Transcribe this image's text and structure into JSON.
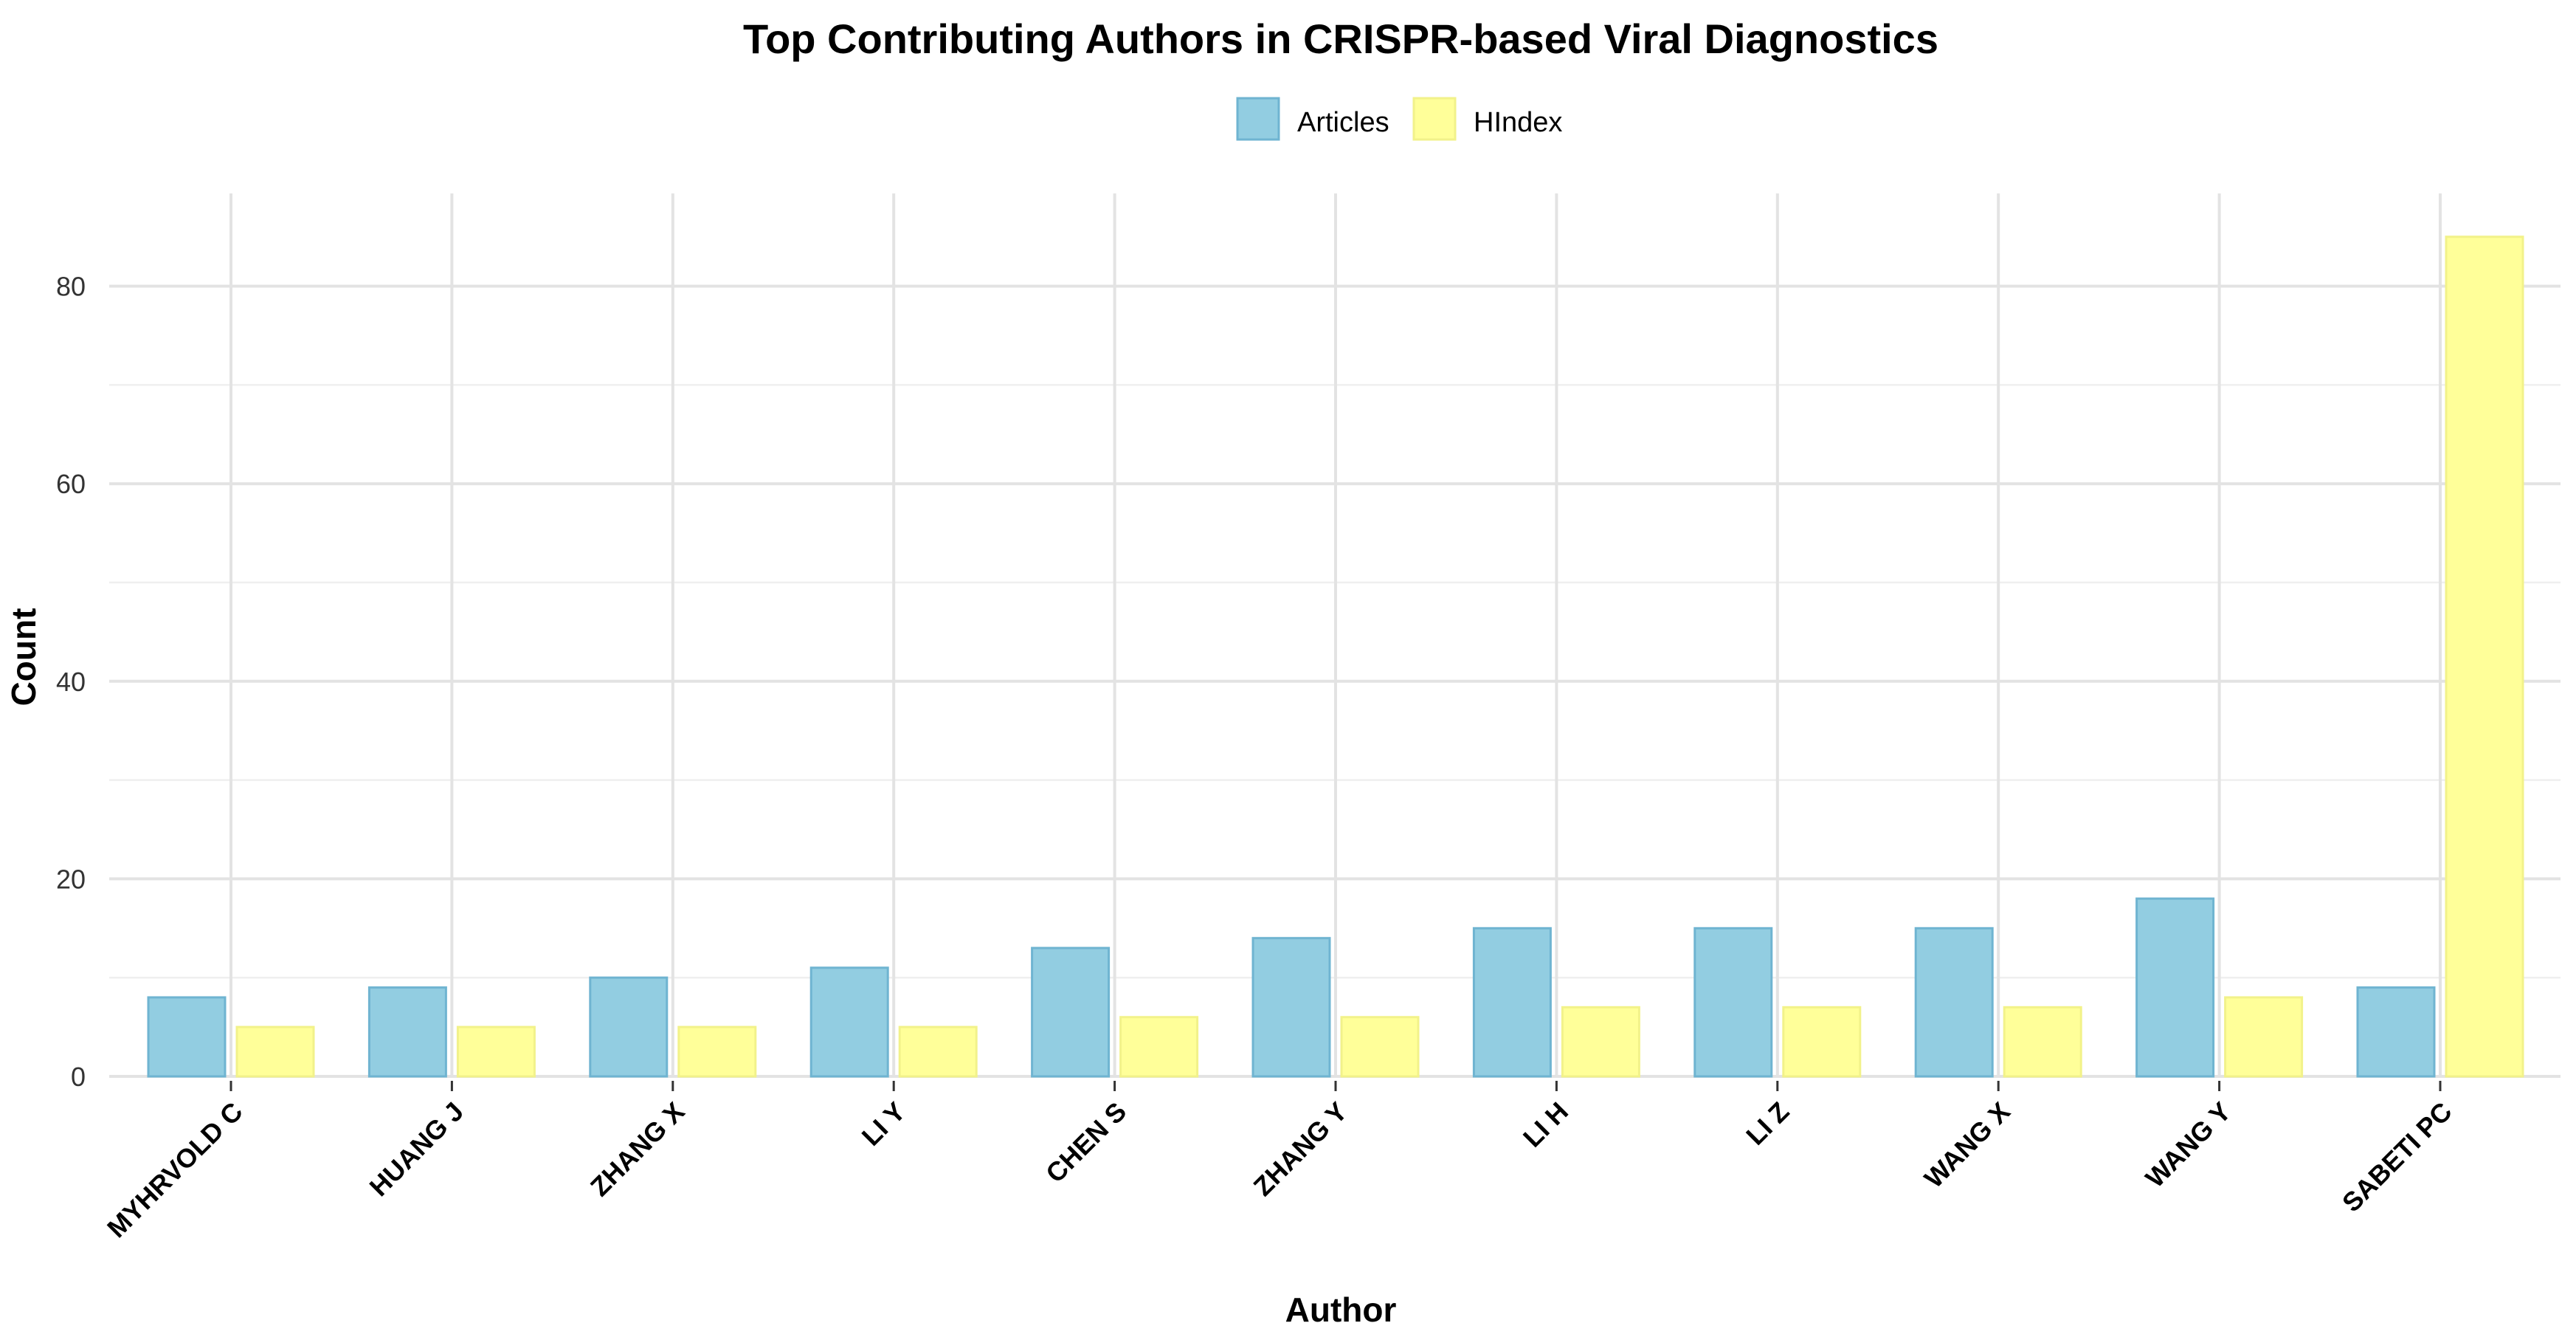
{
  "chart_data": {
    "type": "bar",
    "title": "Top Contributing Authors in CRISPR-based Viral Diagnostics",
    "xlabel": "Author",
    "ylabel": "Count",
    "categories": [
      "MYHRVOLD C",
      "HUANG J",
      "ZHANG X",
      "LI Y",
      "CHEN S",
      "ZHANG Y",
      "LI H",
      "LI Z",
      "WANG X",
      "WANG Y",
      "SABETI PC"
    ],
    "series": [
      {
        "name": "Articles",
        "values": [
          8,
          9,
          10,
          11,
          13,
          14,
          15,
          15,
          15,
          18,
          9
        ],
        "color": "#92CDE1",
        "edge_color": "#6FB4D1"
      },
      {
        "name": "HIndex",
        "values": [
          5,
          5,
          5,
          5,
          6,
          6,
          7,
          7,
          7,
          8,
          85
        ],
        "color": "#FFFF99",
        "edge_color": "#F2F28A"
      }
    ],
    "ylim": [
      0,
      89
    ],
    "yticks": [
      0,
      20,
      40,
      60,
      80
    ],
    "legend_position": "top",
    "grid": true,
    "x_tick_rotation": 45
  }
}
